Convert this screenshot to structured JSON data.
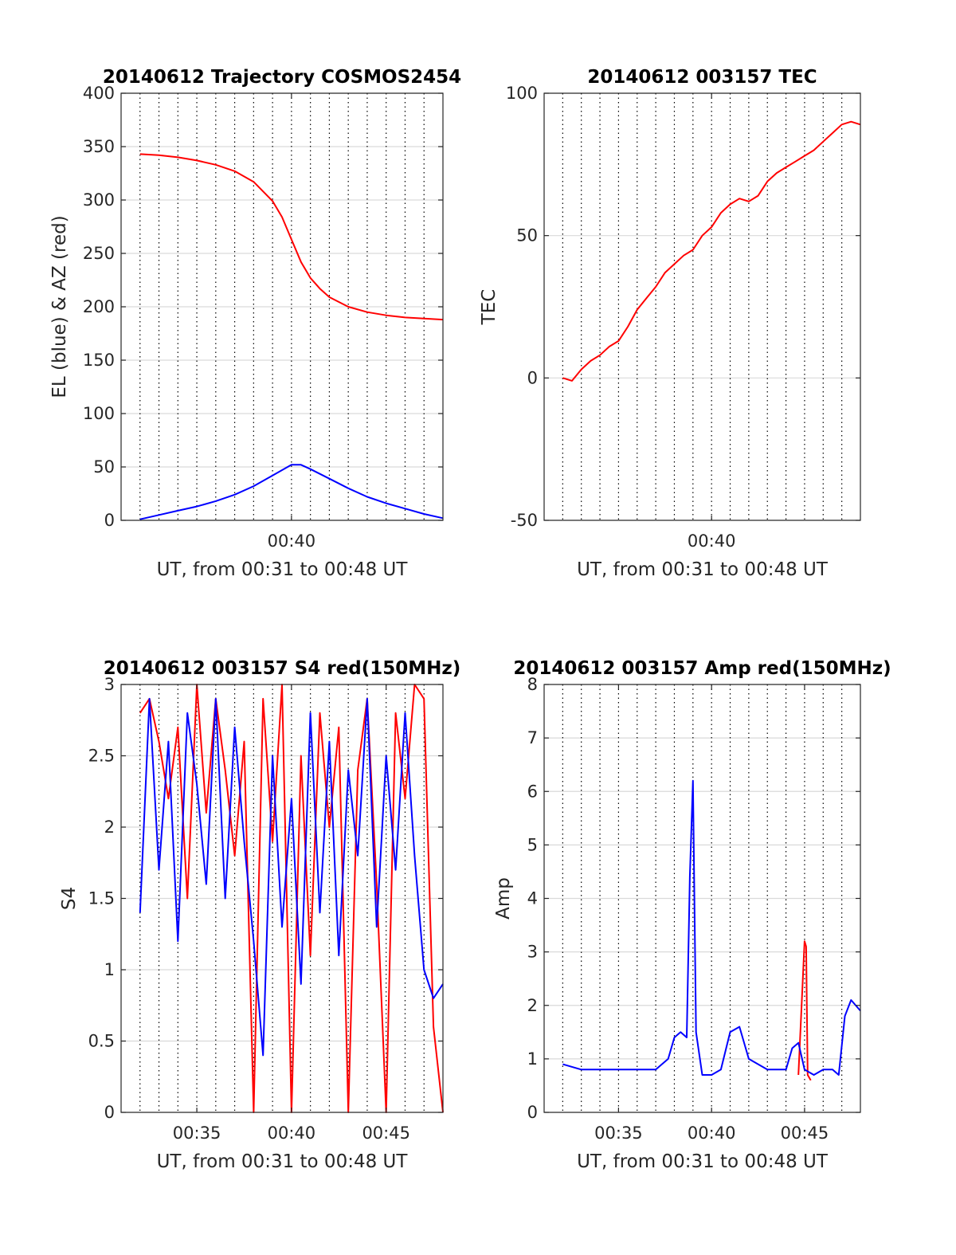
{
  "figure_title": "",
  "colors": {
    "el_line": "#0000ff",
    "az_line": "#ff0000",
    "grid_major": "#d9d9d9",
    "grid_dotted": "#000000"
  },
  "chart_data": [
    {
      "id": "trajectory",
      "type": "line",
      "title": "20140612 Trajectory COSMOS2454",
      "xlabel": "UT, from 00:31 to 00:48 UT",
      "ylabel": "EL (blue) & AZ (red)",
      "xlim": [
        "00:31:00",
        "00:48:00"
      ],
      "ylim": [
        0,
        400
      ],
      "yticks": [
        0,
        50,
        100,
        150,
        200,
        250,
        300,
        350,
        400
      ],
      "xticks": [
        {
          "t": "00:40:00",
          "label": "00:40"
        }
      ],
      "grid": true,
      "series": [
        {
          "name": "AZ",
          "color": "#ff0000",
          "x": [
            "00:32:00",
            "00:33:00",
            "00:34:00",
            "00:35:00",
            "00:36:00",
            "00:37:00",
            "00:38:00",
            "00:39:00",
            "00:39:30",
            "00:40:00",
            "00:40:30",
            "00:41:00",
            "00:41:30",
            "00:42:00",
            "00:43:00",
            "00:44:00",
            "00:45:00",
            "00:46:00",
            "00:47:00",
            "00:48:00"
          ],
          "y": [
            343,
            342,
            340,
            337,
            333,
            327,
            317,
            299,
            284,
            263,
            242,
            227,
            217,
            209,
            200,
            195,
            192,
            190,
            189,
            188
          ]
        },
        {
          "name": "EL",
          "color": "#0000ff",
          "x": [
            "00:32:00",
            "00:33:00",
            "00:34:00",
            "00:35:00",
            "00:36:00",
            "00:37:00",
            "00:38:00",
            "00:39:00",
            "00:39:30",
            "00:40:00",
            "00:40:30",
            "00:41:00",
            "00:42:00",
            "00:43:00",
            "00:44:00",
            "00:45:00",
            "00:46:00",
            "00:47:00",
            "00:48:00"
          ],
          "y": [
            1,
            5,
            9,
            13,
            18,
            24,
            32,
            42,
            47,
            52,
            52,
            48,
            39,
            30,
            22,
            16,
            11,
            6,
            2
          ]
        }
      ]
    },
    {
      "id": "tec",
      "type": "line",
      "title": "20140612 003157 TEC",
      "xlabel": "UT, from 00:31 to 00:48 UT",
      "ylabel": "TEC",
      "xlim": [
        "00:31:00",
        "00:48:00"
      ],
      "ylim": [
        -50,
        100
      ],
      "yticks": [
        -50,
        0,
        50,
        100
      ],
      "xticks": [
        {
          "t": "00:40:00",
          "label": "00:40"
        }
      ],
      "grid": true,
      "series": [
        {
          "name": "TEC",
          "color": "#ff0000",
          "x": [
            "00:32:00",
            "00:32:30",
            "00:33:00",
            "00:33:30",
            "00:34:00",
            "00:34:30",
            "00:35:00",
            "00:35:30",
            "00:36:00",
            "00:36:30",
            "00:37:00",
            "00:37:30",
            "00:38:00",
            "00:38:30",
            "00:39:00",
            "00:39:30",
            "00:40:00",
            "00:40:30",
            "00:41:00",
            "00:41:30",
            "00:42:00",
            "00:42:30",
            "00:43:00",
            "00:43:30",
            "00:44:00",
            "00:44:30",
            "00:45:00",
            "00:45:30",
            "00:46:00",
            "00:46:30",
            "00:47:00",
            "00:47:30",
            "00:48:00"
          ],
          "y": [
            0,
            -1,
            3,
            6,
            8,
            11,
            13,
            18,
            24,
            28,
            32,
            37,
            40,
            43,
            45,
            50,
            53,
            58,
            61,
            63,
            62,
            64,
            69,
            72,
            74,
            76,
            78,
            80,
            83,
            86,
            89,
            90,
            89
          ]
        }
      ]
    },
    {
      "id": "s4",
      "type": "line",
      "title": "20140612 003157 S4 red(150MHz)",
      "xlabel": "UT, from 00:31 to 00:48 UT",
      "ylabel": "S4",
      "xlim": [
        "00:31:00",
        "00:48:00"
      ],
      "ylim": [
        0,
        3
      ],
      "yticks": [
        0,
        0.5,
        1,
        1.5,
        2,
        2.5,
        3
      ],
      "ytick_labels": [
        "0",
        "0.5",
        "1",
        "1.5",
        "2",
        "2.5",
        "3"
      ],
      "xticks": [
        {
          "t": "00:35:00",
          "label": "00:35"
        },
        {
          "t": "00:40:00",
          "label": "00:40"
        },
        {
          "t": "00:45:00",
          "label": "00:45"
        }
      ],
      "grid": true,
      "series": [
        {
          "name": "red",
          "color": "#ff0000",
          "x": [
            "00:32:00",
            "00:32:30",
            "00:33:00",
            "00:33:30",
            "00:34:00",
            "00:34:30",
            "00:35:00",
            "00:35:30",
            "00:36:00",
            "00:36:30",
            "00:37:00",
            "00:37:30",
            "00:38:00",
            "00:38:30",
            "00:39:00",
            "00:39:30",
            "00:40:00",
            "00:40:30",
            "00:41:00",
            "00:41:30",
            "00:42:00",
            "00:42:30",
            "00:43:00",
            "00:43:30",
            "00:44:00",
            "00:44:30",
            "00:45:00",
            "00:45:30",
            "00:46:00",
            "00:46:30",
            "00:47:00",
            "00:47:30",
            "00:48:00"
          ],
          "y": [
            2.8,
            2.9,
            2.6,
            2.2,
            2.7,
            1.5,
            3.0,
            2.1,
            2.9,
            2.4,
            1.8,
            2.6,
            0.0,
            2.9,
            1.9,
            3.0,
            0.0,
            2.5,
            1.1,
            2.8,
            2.0,
            2.7,
            0.0,
            2.4,
            2.9,
            1.6,
            0.0,
            2.8,
            2.2,
            3.0,
            2.9,
            0.6,
            0.0
          ]
        },
        {
          "name": "blue",
          "color": "#0000ff",
          "x": [
            "00:32:00",
            "00:32:30",
            "00:33:00",
            "00:33:30",
            "00:34:00",
            "00:34:30",
            "00:35:00",
            "00:35:30",
            "00:36:00",
            "00:36:30",
            "00:37:00",
            "00:37:30",
            "00:38:00",
            "00:38:30",
            "00:39:00",
            "00:39:30",
            "00:40:00",
            "00:40:30",
            "00:41:00",
            "00:41:30",
            "00:42:00",
            "00:42:30",
            "00:43:00",
            "00:43:30",
            "00:44:00",
            "00:44:30",
            "00:45:00",
            "00:45:30",
            "00:46:00",
            "00:46:30",
            "00:47:00",
            "00:47:30",
            "00:48:00"
          ],
          "y": [
            1.4,
            2.9,
            1.7,
            2.6,
            1.2,
            2.8,
            2.3,
            1.6,
            2.9,
            1.5,
            2.7,
            1.9,
            1.2,
            0.4,
            2.5,
            1.3,
            2.2,
            0.9,
            2.8,
            1.4,
            2.6,
            1.1,
            2.4,
            1.8,
            2.9,
            1.3,
            2.5,
            1.7,
            2.8,
            1.8,
            1.0,
            0.8,
            0.9
          ]
        }
      ]
    },
    {
      "id": "amp",
      "type": "line",
      "title": "20140612 003157 Amp red(150MHz)",
      "xlabel": "UT, from 00:31 to 00:48 UT",
      "ylabel": "Amp",
      "xlim": [
        "00:31:00",
        "00:48:00"
      ],
      "ylim": [
        0,
        8
      ],
      "yticks": [
        0,
        1,
        2,
        3,
        4,
        5,
        6,
        7,
        8
      ],
      "xticks": [
        {
          "t": "00:35:00",
          "label": "00:35"
        },
        {
          "t": "00:40:00",
          "label": "00:40"
        },
        {
          "t": "00:45:00",
          "label": "00:45"
        }
      ],
      "grid": true,
      "series": [
        {
          "name": "red",
          "color": "#ff0000",
          "x": [
            "00:44:40",
            "00:45:00",
            "00:45:05",
            "00:45:10",
            "00:45:20"
          ],
          "y": [
            0.7,
            3.2,
            3.1,
            0.7,
            0.6
          ]
        },
        {
          "name": "blue",
          "color": "#0000ff",
          "x": [
            "00:32:00",
            "00:33:00",
            "00:34:00",
            "00:35:00",
            "00:36:00",
            "00:37:00",
            "00:37:40",
            "00:38:00",
            "00:38:20",
            "00:38:40",
            "00:38:50",
            "00:39:00",
            "00:39:10",
            "00:39:30",
            "00:40:00",
            "00:40:30",
            "00:41:00",
            "00:41:30",
            "00:42:00",
            "00:43:00",
            "00:44:00",
            "00:44:20",
            "00:44:40",
            "00:45:00",
            "00:45:30",
            "00:46:00",
            "00:46:30",
            "00:46:50",
            "00:47:10",
            "00:47:30",
            "00:48:00"
          ],
          "y": [
            0.9,
            0.8,
            0.8,
            0.8,
            0.8,
            0.8,
            1.0,
            1.4,
            1.5,
            1.4,
            4.4,
            6.2,
            1.5,
            0.7,
            0.7,
            0.8,
            1.5,
            1.6,
            1.0,
            0.8,
            0.8,
            1.2,
            1.3,
            0.8,
            0.7,
            0.8,
            0.8,
            0.7,
            1.8,
            2.1,
            1.9
          ]
        }
      ]
    }
  ]
}
